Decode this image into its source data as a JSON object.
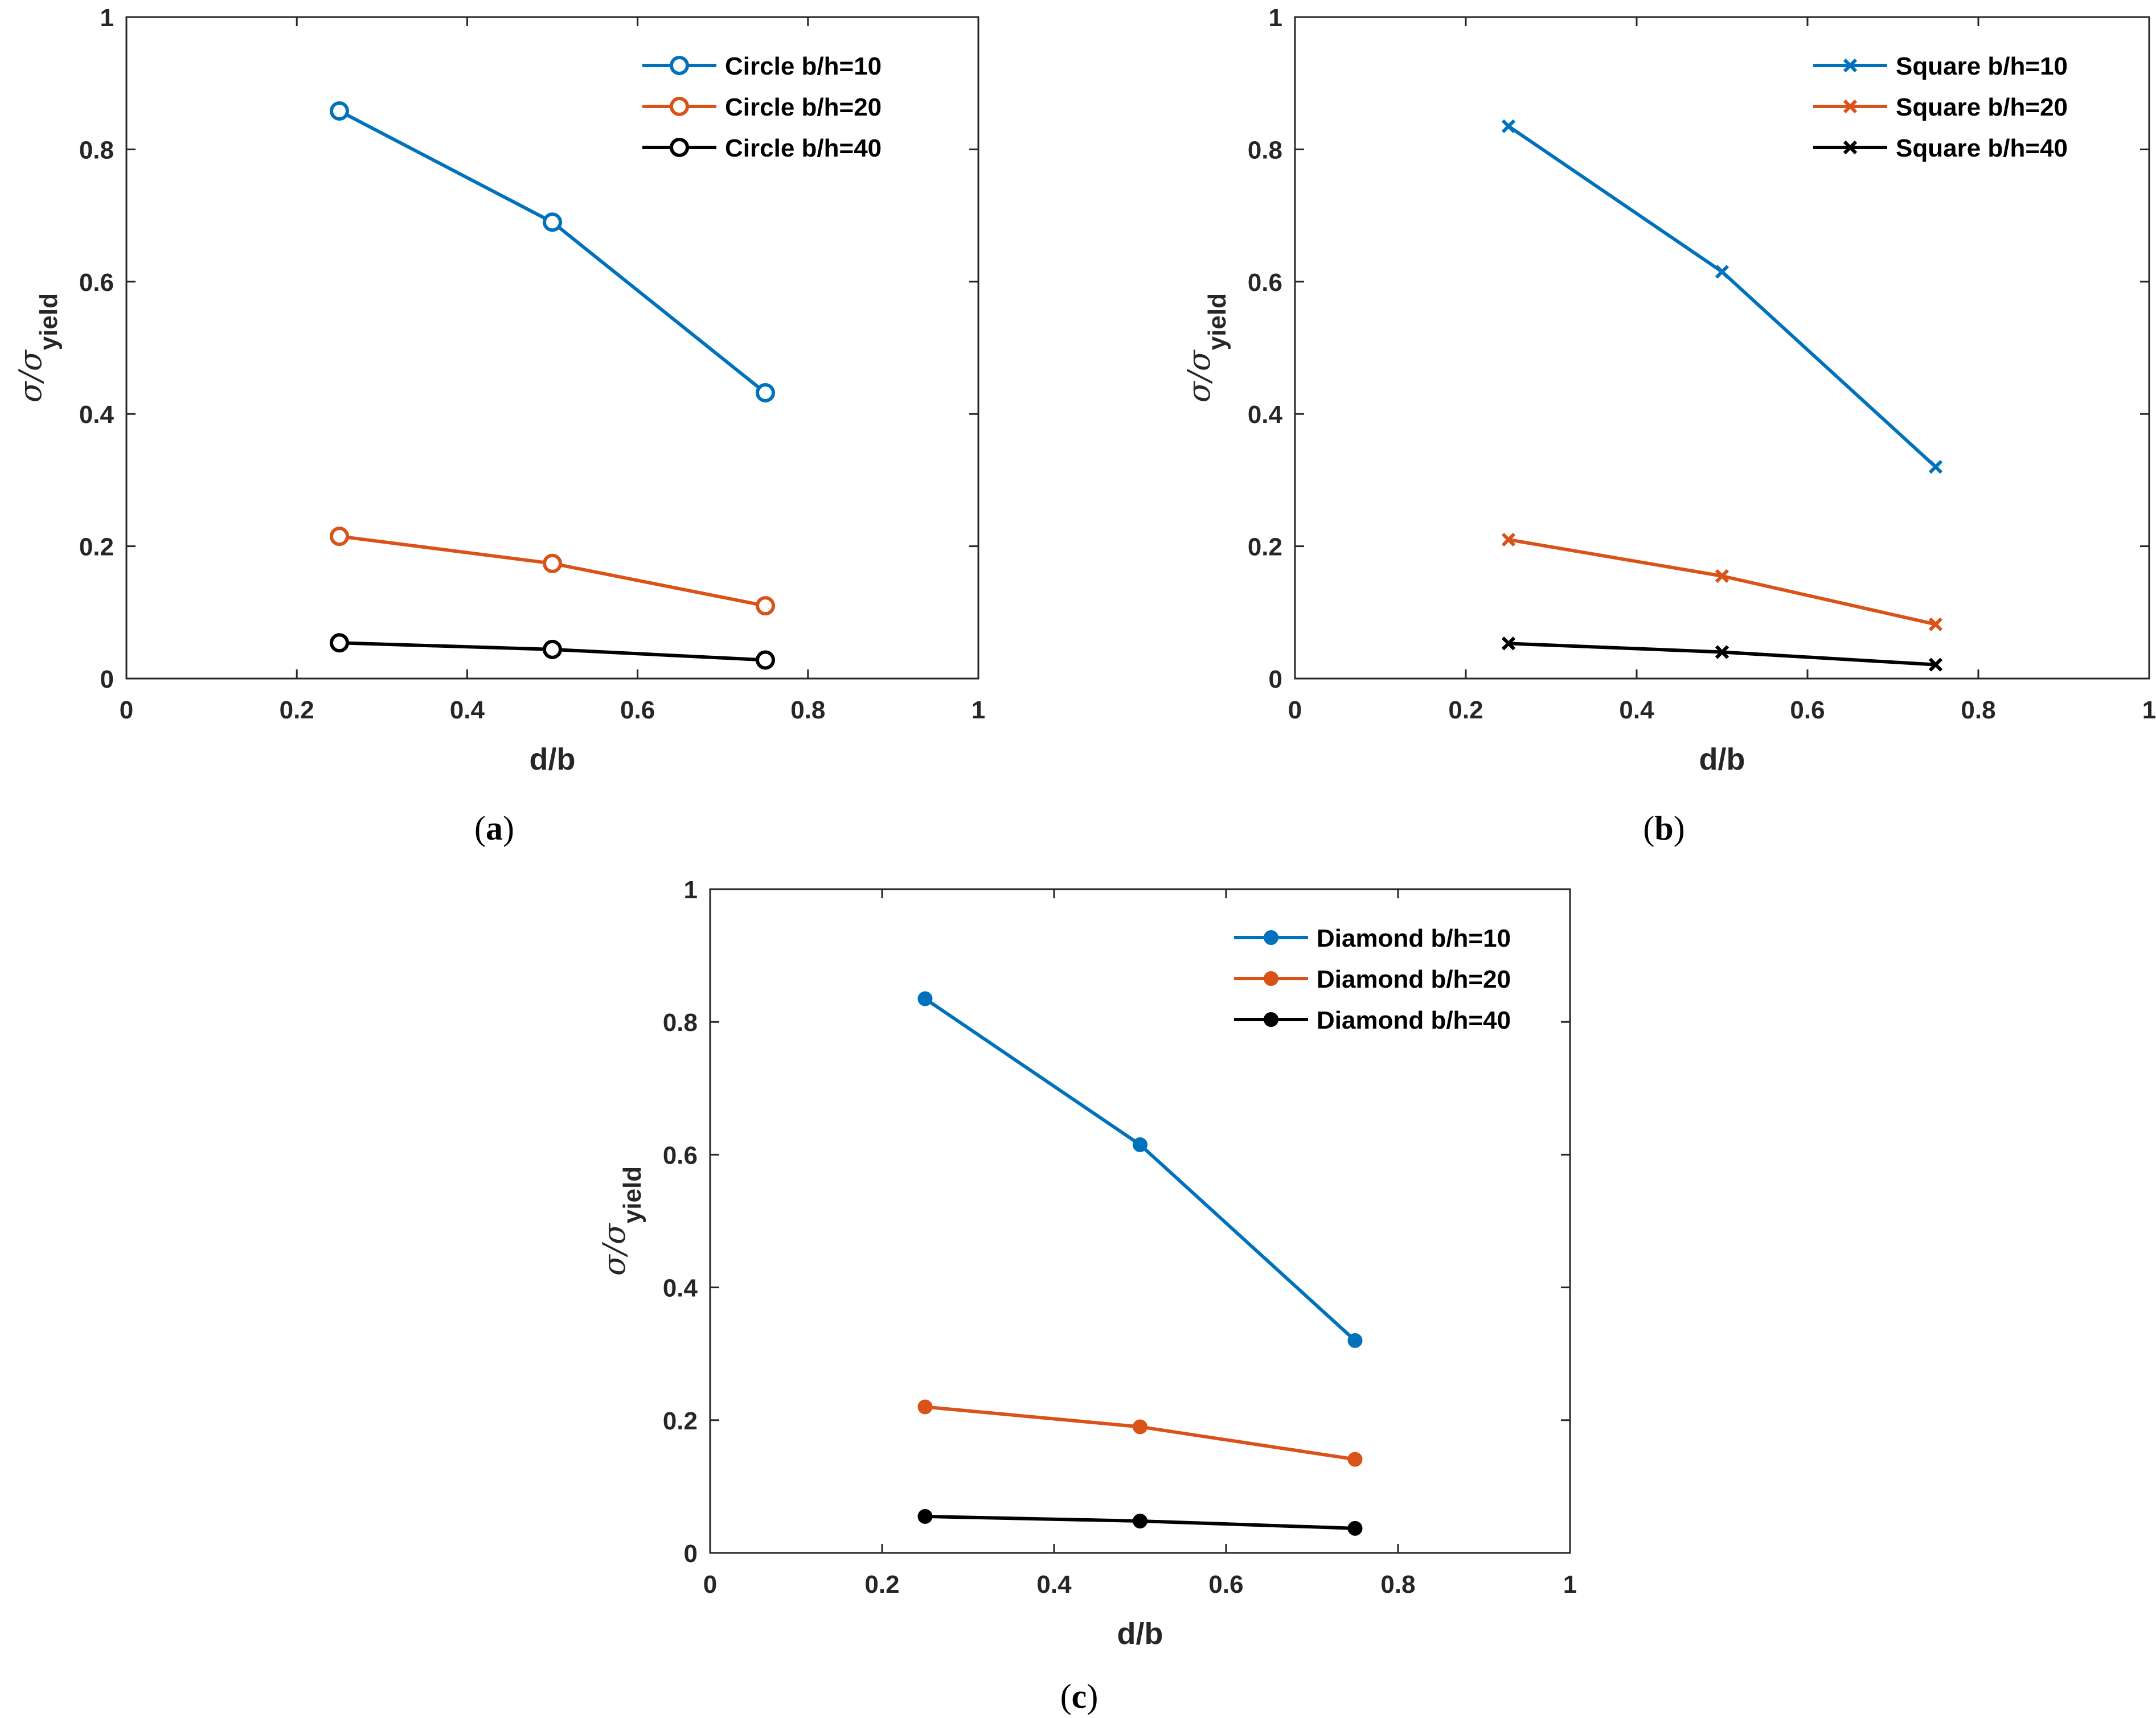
{
  "chart_data": [
    {
      "type": "line",
      "panel": "a",
      "caption": "(a)",
      "caption_letter": "a",
      "xlabel": "d/b",
      "ylabel": "σ/σ_yield",
      "ylabel_sym": "σ/σ",
      "ylabel_sub": "yield",
      "xlim": [
        0,
        1
      ],
      "ylim": [
        0,
        1
      ],
      "xticks": [
        "0",
        "0.2",
        "0.4",
        "0.6",
        "0.8",
        "1"
      ],
      "yticks": [
        "0",
        "0.2",
        "0.4",
        "0.6",
        "0.8",
        "1"
      ],
      "marker": "circle-open",
      "legend_position": "top-right",
      "x": [
        0.25,
        0.5,
        0.75
      ],
      "series": [
        {
          "name": "Circle b/h=10",
          "color": "#0072BD",
          "values": [
            0.858,
            0.69,
            0.432
          ]
        },
        {
          "name": "Circle b/h=20",
          "color": "#D95319",
          "values": [
            0.215,
            0.174,
            0.11
          ]
        },
        {
          "name": "Circle b/h=40",
          "color": "#000000",
          "values": [
            0.054,
            0.044,
            0.028
          ]
        }
      ]
    },
    {
      "type": "line",
      "panel": "b",
      "caption": "(b)",
      "caption_letter": "b",
      "xlabel": "d/b",
      "ylabel": "σ/σ_yield",
      "ylabel_sym": "σ/σ",
      "ylabel_sub": "yield",
      "xlim": [
        0,
        1
      ],
      "ylim": [
        0,
        1
      ],
      "xticks": [
        "0",
        "0.2",
        "0.4",
        "0.6",
        "0.8",
        "1"
      ],
      "yticks": [
        "0",
        "0.2",
        "0.4",
        "0.6",
        "0.8",
        "1"
      ],
      "marker": "x",
      "legend_position": "top-right",
      "x": [
        0.25,
        0.5,
        0.75
      ],
      "series": [
        {
          "name": "Square b/h=10",
          "color": "#0072BD",
          "values": [
            0.835,
            0.615,
            0.32
          ]
        },
        {
          "name": "Square b/h=20",
          "color": "#D95319",
          "values": [
            0.21,
            0.155,
            0.082
          ]
        },
        {
          "name": "Square b/h=40",
          "color": "#000000",
          "values": [
            0.053,
            0.04,
            0.021
          ]
        }
      ]
    },
    {
      "type": "line",
      "panel": "c",
      "caption": "(c)",
      "caption_letter": "c",
      "xlabel": "d/b",
      "ylabel": "σ/σ_yield",
      "ylabel_sym": "σ/σ",
      "ylabel_sub": "yield",
      "xlim": [
        0,
        1
      ],
      "ylim": [
        0,
        1
      ],
      "xticks": [
        "0",
        "0.2",
        "0.4",
        "0.6",
        "0.8",
        "1"
      ],
      "yticks": [
        "0",
        "0.2",
        "0.4",
        "0.6",
        "0.8",
        "1"
      ],
      "marker": "dot-filled",
      "legend_position": "top-right",
      "x": [
        0.25,
        0.5,
        0.75
      ],
      "series": [
        {
          "name": "Diamond b/h=10",
          "color": "#0072BD",
          "values": [
            0.835,
            0.615,
            0.32
          ]
        },
        {
          "name": "Diamond b/h=20",
          "color": "#D95319",
          "values": [
            0.22,
            0.19,
            0.141
          ]
        },
        {
          "name": "Diamond b/h=40",
          "color": "#000000",
          "values": [
            0.055,
            0.048,
            0.037
          ]
        }
      ]
    }
  ]
}
